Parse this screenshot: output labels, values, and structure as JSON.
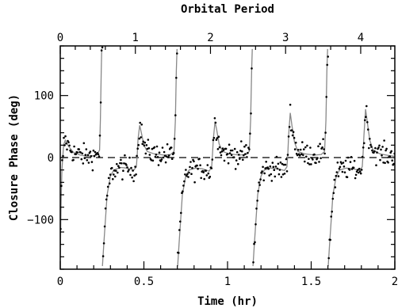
{
  "chart_data": {
    "type": "scatter",
    "title": "",
    "xlabel": "Time (hr)",
    "ylabel": "Closure Phase (deg)",
    "top_axis_label": "Orbital Period",
    "xlim": [
      0,
      2
    ],
    "ylim": [
      -180,
      180
    ],
    "x_tick_labels": [
      "0",
      "0.5",
      "1",
      "1.5",
      "2"
    ],
    "y_tick_labels": [
      "100",
      "0",
      "−100"
    ],
    "top_tick_labels": [
      "0",
      "1",
      "2",
      "3",
      "4"
    ],
    "top_tick_positions_hr": [
      0,
      0.449,
      0.898,
      1.347,
      1.796
    ],
    "reference_line": {
      "y": 0,
      "style": "dashed"
    },
    "model_curve": {
      "color": "#888888",
      "points": [
        [
          0.0,
          -160
        ],
        [
          0.005,
          -70
        ],
        [
          0.01,
          -20
        ],
        [
          0.02,
          20
        ],
        [
          0.03,
          28
        ],
        [
          0.05,
          18
        ],
        [
          0.08,
          8
        ],
        [
          0.12,
          4
        ],
        [
          0.16,
          2
        ],
        [
          0.2,
          3
        ],
        [
          0.22,
          5
        ],
        [
          0.235,
          12
        ],
        [
          0.24,
          60
        ],
        [
          0.245,
          140
        ],
        [
          0.248,
          175
        ],
        [
          0.252,
          -175
        ],
        [
          0.26,
          -140
        ],
        [
          0.28,
          -60
        ],
        [
          0.3,
          -30
        ],
        [
          0.32,
          -20
        ],
        [
          0.36,
          -16
        ],
        [
          0.4,
          -17
        ],
        [
          0.44,
          -20
        ],
        [
          0.455,
          -15
        ],
        [
          0.46,
          5
        ],
        [
          0.465,
          30
        ],
        [
          0.475,
          52
        ],
        [
          0.485,
          40
        ],
        [
          0.5,
          20
        ],
        [
          0.52,
          10
        ],
        [
          0.56,
          6
        ],
        [
          0.62,
          4
        ],
        [
          0.66,
          5
        ],
        [
          0.68,
          10
        ],
        [
          0.688,
          60
        ],
        [
          0.694,
          140
        ],
        [
          0.698,
          175
        ],
        [
          0.702,
          -175
        ],
        [
          0.71,
          -140
        ],
        [
          0.73,
          -60
        ],
        [
          0.75,
          -30
        ],
        [
          0.77,
          -20
        ],
        [
          0.81,
          -17
        ],
        [
          0.85,
          -18
        ],
        [
          0.89,
          -22
        ],
        [
          0.905,
          -15
        ],
        [
          0.91,
          5
        ],
        [
          0.915,
          30
        ],
        [
          0.925,
          58
        ],
        [
          0.935,
          45
        ],
        [
          0.95,
          22
        ],
        [
          0.97,
          10
        ],
        [
          1.01,
          6
        ],
        [
          1.07,
          4
        ],
        [
          1.11,
          5
        ],
        [
          1.13,
          10
        ],
        [
          1.138,
          60
        ],
        [
          1.144,
          140
        ],
        [
          1.148,
          175
        ],
        [
          1.152,
          -175
        ],
        [
          1.16,
          -140
        ],
        [
          1.18,
          -60
        ],
        [
          1.2,
          -30
        ],
        [
          1.22,
          -20
        ],
        [
          1.26,
          -17
        ],
        [
          1.3,
          -18
        ],
        [
          1.34,
          -21
        ],
        [
          1.355,
          -15
        ],
        [
          1.36,
          5
        ],
        [
          1.365,
          35
        ],
        [
          1.375,
          72
        ],
        [
          1.385,
          52
        ],
        [
          1.4,
          25
        ],
        [
          1.42,
          10
        ],
        [
          1.46,
          6
        ],
        [
          1.52,
          4
        ],
        [
          1.56,
          5
        ],
        [
          1.58,
          10
        ],
        [
          1.588,
          60
        ],
        [
          1.594,
          140
        ],
        [
          1.598,
          175
        ],
        [
          1.602,
          -175
        ],
        [
          1.61,
          -140
        ],
        [
          1.63,
          -60
        ],
        [
          1.65,
          -30
        ],
        [
          1.67,
          -20
        ],
        [
          1.71,
          -17
        ],
        [
          1.75,
          -18
        ],
        [
          1.79,
          -21
        ],
        [
          1.805,
          -15
        ],
        [
          1.81,
          5
        ],
        [
          1.815,
          35
        ],
        [
          1.825,
          78
        ],
        [
          1.835,
          58
        ],
        [
          1.85,
          28
        ],
        [
          1.87,
          12
        ],
        [
          1.91,
          6
        ],
        [
          1.97,
          3
        ],
        [
          2.0,
          2
        ]
      ]
    },
    "scatter_description": "noisy measured points scattered around the model curve"
  }
}
